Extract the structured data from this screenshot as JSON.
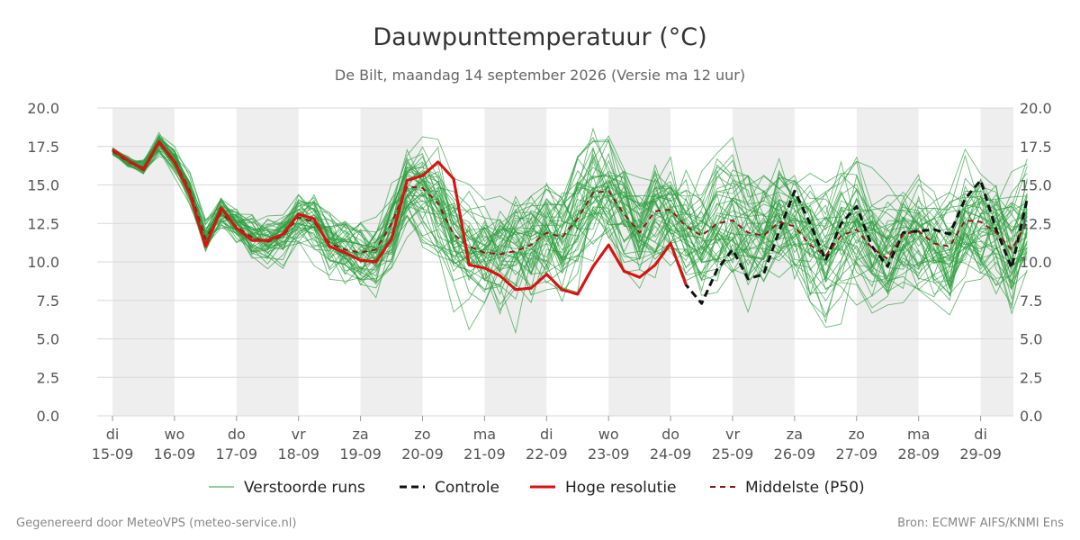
{
  "chart_data": {
    "type": "line",
    "title": "Dauwpunttemperatuur (°C)",
    "subtitle": "De Bilt, maandag 14 september 2026 (Versie ma 12 uur)",
    "ylim": [
      0,
      20
    ],
    "y_ticks": [
      "0.0",
      "2.5",
      "5.0",
      "7.5",
      "10.0",
      "12.5",
      "15.0",
      "17.5",
      "20.0"
    ],
    "x_range_days": [
      0,
      14.75
    ],
    "day_labels": [
      {
        "day": "di",
        "date": "15-09"
      },
      {
        "day": "wo",
        "date": "16-09"
      },
      {
        "day": "do",
        "date": "17-09"
      },
      {
        "day": "vr",
        "date": "18-09"
      },
      {
        "day": "za",
        "date": "19-09"
      },
      {
        "day": "zo",
        "date": "20-09"
      },
      {
        "day": "ma",
        "date": "21-09"
      },
      {
        "day": "di",
        "date": "22-09"
      },
      {
        "day": "wo",
        "date": "23-09"
      },
      {
        "day": "do",
        "date": "24-09"
      },
      {
        "day": "vr",
        "date": "25-09"
      },
      {
        "day": "za",
        "date": "26-09"
      },
      {
        "day": "zo",
        "date": "27-09"
      },
      {
        "day": "ma",
        "date": "28-09"
      },
      {
        "day": "di",
        "date": "29-09"
      }
    ],
    "grid": true,
    "legend_position": "bottom",
    "series": [
      {
        "name": "Hoge resolutie",
        "color": "#dd1111",
        "x": [
          0,
          0.25,
          0.5,
          0.75,
          1,
          1.25,
          1.5,
          1.75,
          2,
          2.25,
          2.5,
          2.75,
          3,
          3.25,
          3.5,
          3.75,
          4,
          4.25,
          4.5,
          4.75,
          5,
          5.25,
          5.5,
          5.75,
          6,
          6.25,
          6.5,
          6.75,
          7,
          7.25,
          7.5,
          7.75,
          8,
          8.25,
          8.5,
          8.75,
          9,
          9.25
        ],
        "values": [
          17.3,
          16.6,
          16.0,
          17.8,
          16.5,
          14.4,
          11.0,
          13.5,
          12.2,
          11.4,
          11.4,
          11.8,
          13.1,
          12.8,
          11.0,
          10.6,
          10.1,
          10.0,
          11.5,
          15.3,
          15.6,
          16.5,
          15.4,
          9.8,
          9.6,
          9.1,
          8.2,
          8.3,
          9.2,
          8.2,
          7.9,
          9.7,
          11.1,
          9.4,
          9.0,
          9.8,
          11.2,
          8.5
        ]
      },
      {
        "name": "Controle",
        "color": "#111111",
        "x": [
          0,
          0.25,
          0.5,
          0.75,
          1,
          1.25,
          1.5,
          1.75,
          2,
          2.25,
          2.5,
          2.75,
          3,
          3.25,
          3.5,
          3.75,
          4,
          4.25,
          4.5,
          4.75,
          5,
          5.25,
          5.5,
          5.75,
          6,
          6.25,
          6.5,
          6.75,
          7,
          7.25,
          7.5,
          7.75,
          8,
          8.25,
          8.5,
          8.75,
          9,
          9.25,
          9.5,
          9.75,
          10,
          10.25,
          10.5,
          10.75,
          11,
          11.25,
          11.5,
          11.75,
          12,
          12.25,
          12.5,
          12.75,
          13,
          13.25,
          13.5,
          13.75,
          14,
          14.25,
          14.5,
          14.75
        ],
        "values": [
          17.3,
          16.6,
          16.0,
          17.8,
          16.5,
          14.4,
          11.0,
          13.5,
          12.2,
          11.4,
          11.4,
          11.8,
          13.1,
          12.8,
          11.0,
          10.6,
          10.1,
          10.0,
          11.5,
          15.3,
          15.6,
          16.5,
          15.4,
          9.8,
          9.6,
          9.1,
          8.2,
          8.3,
          9.2,
          8.2,
          7.9,
          9.7,
          11.1,
          9.4,
          9.0,
          9.8,
          11.2,
          8.5,
          7.3,
          9.5,
          10.8,
          8.9,
          9.2,
          12.0,
          14.6,
          12.5,
          10.1,
          12.5,
          13.6,
          11.0,
          9.7,
          11.9,
          12.0,
          12.1,
          11.8,
          14.1,
          15.3,
          12.1,
          9.6,
          14.1
        ]
      },
      {
        "name": "Middelste (P50)",
        "color": "#8b1a1a",
        "x": [
          0,
          0.25,
          0.5,
          0.75,
          1,
          1.25,
          1.5,
          1.75,
          2,
          2.25,
          2.5,
          2.75,
          3,
          3.25,
          3.5,
          3.75,
          4,
          4.25,
          4.5,
          4.75,
          5,
          5.25,
          5.5,
          5.75,
          6,
          6.25,
          6.5,
          6.75,
          7,
          7.25,
          7.5,
          7.75,
          8,
          8.25,
          8.5,
          8.75,
          9,
          9.25,
          9.5,
          9.75,
          10,
          10.25,
          10.5,
          10.75,
          11,
          11.25,
          11.5,
          11.75,
          12,
          12.25,
          12.5,
          12.75,
          13,
          13.25,
          13.5,
          13.75,
          14,
          14.25,
          14.5,
          14.75
        ],
        "values": [
          17.2,
          16.5,
          16.1,
          17.7,
          16.6,
          14.6,
          11.5,
          13.2,
          12.3,
          11.6,
          11.3,
          11.7,
          12.9,
          12.6,
          11.2,
          10.8,
          10.6,
          10.8,
          12.5,
          14.9,
          14.8,
          13.8,
          11.8,
          11.0,
          10.6,
          10.5,
          10.7,
          11.1,
          11.9,
          11.6,
          12.8,
          14.5,
          14.6,
          13.1,
          11.9,
          13.3,
          13.4,
          12.3,
          11.7,
          12.5,
          12.7,
          11.9,
          11.7,
          12.6,
          12.3,
          11.1,
          10.4,
          11.7,
          12.1,
          10.9,
          10.2,
          11.8,
          12.0,
          11.2,
          11.0,
          12.7,
          12.6,
          11.9,
          10.8,
          12.6
        ]
      }
    ]
  },
  "legend": {
    "perturbed": "Verstoorde runs",
    "control": "Controle",
    "hires": "Hoge resolutie",
    "median": "Middelste (P50)"
  },
  "colors": {
    "perturbed": "#2e9e3e",
    "control": "#111111",
    "hires": "#dd1111",
    "median": "#8b1a1a",
    "band": "#eeeeee",
    "grid": "#d8d8d8"
  },
  "footer": {
    "left": "Gegenereerd door MeteoVPS (meteo-service.nl)",
    "right": "Bron: ECMWF AIFS/KNMI Ens"
  }
}
